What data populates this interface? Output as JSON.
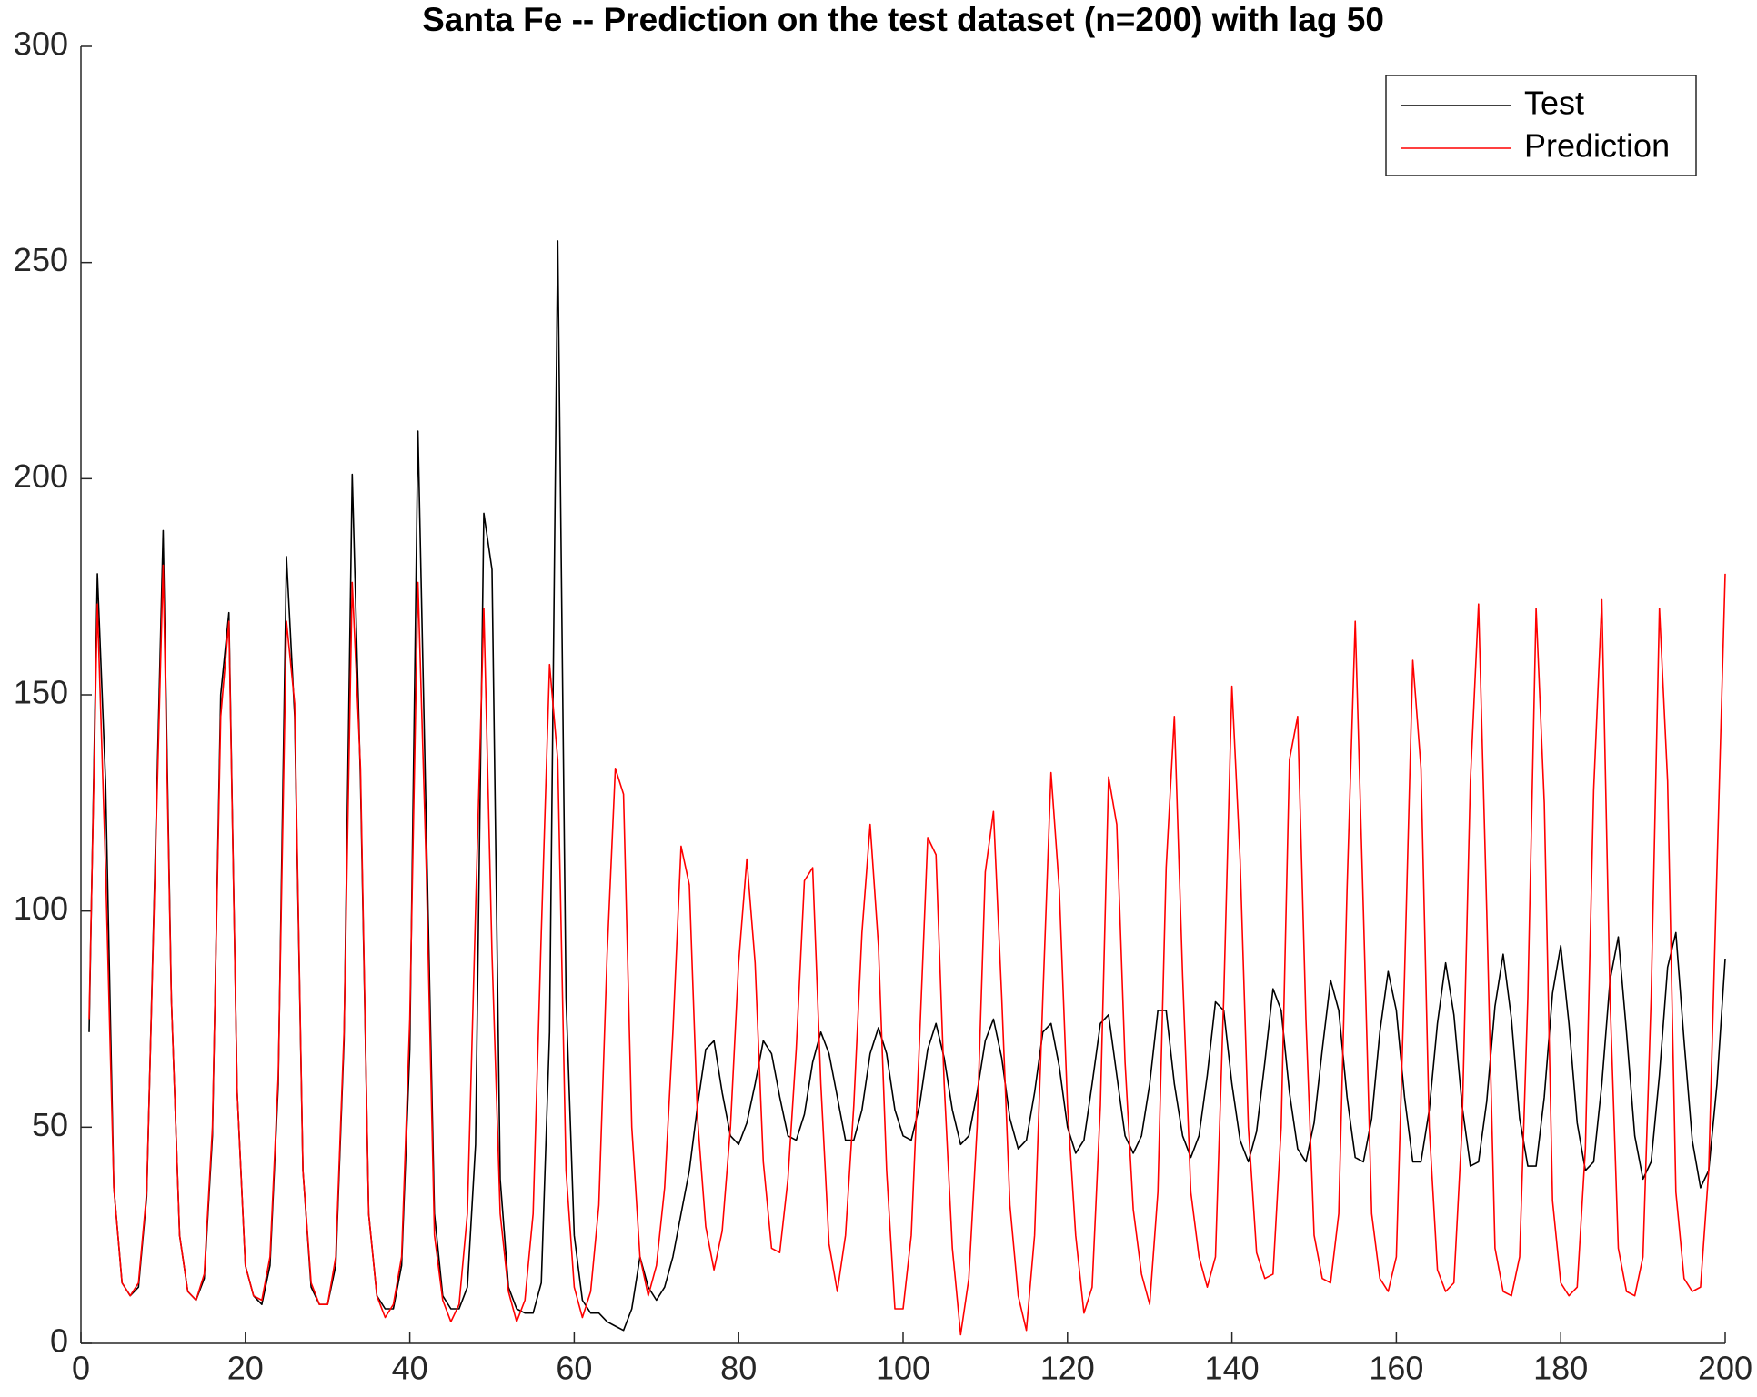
{
  "chart_data": {
    "type": "line",
    "title": "Santa Fe -- Prediction on the test dataset (n=200) with lag 50",
    "x": [
      1,
      2,
      3,
      4,
      5,
      6,
      7,
      8,
      9,
      10,
      11,
      12,
      13,
      14,
      15,
      16,
      17,
      18,
      19,
      20,
      21,
      22,
      23,
      24,
      25,
      26,
      27,
      28,
      29,
      30,
      31,
      32,
      33,
      34,
      35,
      36,
      37,
      38,
      39,
      40,
      41,
      42,
      43,
      44,
      45,
      46,
      47,
      48,
      49,
      50,
      51,
      52,
      53,
      54,
      55,
      56,
      57,
      58,
      59,
      60,
      61,
      62,
      63,
      64,
      65,
      66,
      67,
      68,
      69,
      70,
      71,
      72,
      73,
      74,
      75,
      76,
      77,
      78,
      79,
      80,
      81,
      82,
      83,
      84,
      85,
      86,
      87,
      88,
      89,
      90,
      91,
      92,
      93,
      94,
      95,
      96,
      97,
      98,
      99,
      100,
      101,
      102,
      103,
      104,
      105,
      106,
      107,
      108,
      109,
      110,
      111,
      112,
      113,
      114,
      115,
      116,
      117,
      118,
      119,
      120,
      121,
      122,
      123,
      124,
      125,
      126,
      127,
      128,
      129,
      130,
      131,
      132,
      133,
      134,
      135,
      136,
      137,
      138,
      139,
      140,
      141,
      142,
      143,
      144,
      145,
      146,
      147,
      148,
      149,
      150,
      151,
      152,
      153,
      154,
      155,
      156,
      157,
      158,
      159,
      160,
      161,
      162,
      163,
      164,
      165,
      166,
      167,
      168,
      169,
      170,
      171,
      172,
      173,
      174,
      175,
      176,
      177,
      178,
      179,
      180,
      181,
      182,
      183,
      184,
      185,
      186,
      187,
      188,
      189,
      190,
      191,
      192,
      193,
      194,
      195,
      196,
      197,
      198,
      199,
      200
    ],
    "series": [
      {
        "name": "Test",
        "color": "#000000",
        "values": [
          72,
          178,
          130,
          36,
          14,
          11,
          13,
          34,
          110,
          188,
          80,
          25,
          12,
          10,
          15,
          48,
          150,
          169,
          58,
          18,
          11,
          9,
          18,
          60,
          182,
          145,
          40,
          13,
          9,
          9,
          18,
          70,
          201,
          130,
          30,
          11,
          8,
          8,
          18,
          68,
          211,
          120,
          30,
          11,
          8,
          8,
          13,
          46,
          192,
          179,
          38,
          13,
          8,
          7,
          7,
          14,
          72,
          255,
          80,
          25,
          10,
          7,
          7,
          5,
          4,
          3,
          8,
          20,
          13,
          10,
          13,
          20,
          30,
          40,
          55,
          68,
          70,
          58,
          48,
          46,
          51,
          60,
          70,
          67,
          57,
          48,
          47,
          53,
          65,
          72,
          67,
          57,
          47,
          47,
          54,
          67,
          73,
          67,
          54,
          48,
          47,
          55,
          68,
          74,
          66,
          54,
          46,
          48,
          58,
          70,
          75,
          66,
          52,
          45,
          47,
          58,
          72,
          74,
          64,
          50,
          44,
          47,
          60,
          74,
          76,
          62,
          48,
          44,
          48,
          60,
          77,
          77,
          60,
          48,
          43,
          48,
          62,
          79,
          77,
          60,
          47,
          42,
          49,
          65,
          82,
          77,
          58,
          45,
          42,
          51,
          68,
          84,
          77,
          57,
          43,
          42,
          52,
          72,
          86,
          77,
          57,
          42,
          42,
          54,
          74,
          88,
          76,
          55,
          41,
          42,
          56,
          78,
          90,
          75,
          52,
          41,
          41,
          57,
          81,
          92,
          74,
          51,
          40,
          42,
          60,
          84,
          94,
          72,
          48,
          38,
          42,
          62,
          87,
          95,
          70,
          47,
          36,
          40,
          60,
          89
        ]
      },
      {
        "name": "Prediction",
        "color": "#ff0000",
        "values": [
          75,
          171,
          110,
          36,
          14,
          11,
          14,
          35,
          108,
          180,
          80,
          25,
          12,
          10,
          16,
          50,
          145,
          167,
          58,
          18,
          11,
          10,
          20,
          62,
          167,
          148,
          40,
          14,
          9,
          9,
          20,
          72,
          176,
          133,
          30,
          11,
          6,
          9,
          20,
          75,
          176,
          110,
          25,
          10,
          5,
          9,
          30,
          100,
          170,
          90,
          30,
          12,
          5,
          10,
          30,
          95,
          157,
          135,
          40,
          13,
          6,
          12,
          32,
          90,
          133,
          127,
          50,
          20,
          11,
          18,
          36,
          72,
          115,
          106,
          52,
          27,
          17,
          26,
          50,
          88,
          112,
          88,
          42,
          22,
          21,
          38,
          68,
          107,
          110,
          60,
          23,
          12,
          25,
          55,
          95,
          120,
          92,
          40,
          8,
          8,
          25,
          70,
          117,
          113,
          60,
          22,
          2,
          15,
          50,
          109,
          123,
          80,
          32,
          11,
          3,
          25,
          80,
          132,
          105,
          55,
          25,
          7,
          13,
          55,
          131,
          120,
          65,
          31,
          16,
          9,
          35,
          110,
          145,
          85,
          35,
          20,
          13,
          20,
          80,
          152,
          112,
          50,
          21,
          15,
          16,
          50,
          135,
          145,
          75,
          25,
          15,
          14,
          30,
          105,
          167,
          100,
          30,
          15,
          12,
          20,
          85,
          158,
          133,
          50,
          17,
          12,
          14,
          50,
          130,
          171,
          100,
          22,
          12,
          11,
          20,
          80,
          170,
          125,
          33,
          14,
          11,
          13,
          45,
          128,
          172,
          80,
          22,
          12,
          11,
          20,
          80,
          170,
          130,
          35,
          15,
          12,
          13,
          40,
          110,
          178
        ]
      }
    ],
    "xlim": [
      0,
      200
    ],
    "xticks": [
      0,
      20,
      40,
      60,
      80,
      100,
      120,
      140,
      160,
      180,
      200
    ],
    "ylim": [
      0,
      300
    ],
    "yticks": [
      0,
      50,
      100,
      150,
      200,
      250,
      300
    ],
    "legend": "northeast"
  }
}
